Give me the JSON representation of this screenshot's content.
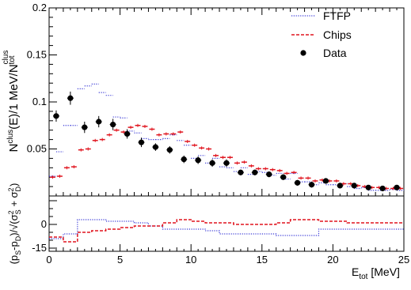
{
  "colors": {
    "ftfp": "#3b3bd6",
    "chips": "#e0141e",
    "data": "#000000"
  },
  "chart_data": [
    {
      "type": "scatter",
      "panel": "main",
      "x_edges_start": 0,
      "x_bin_width": 0.5,
      "xlim": [
        0,
        25
      ],
      "ylim": [
        0,
        0.2
      ],
      "yticks": [
        0.05,
        0.1,
        0.15,
        0.2
      ],
      "ytick_labels": [
        "0.05",
        "0.1",
        "0.15",
        "0.2"
      ],
      "ylabel": "N^{clus}(E)/1 MeV/N^{clus}_{tot}",
      "legend": {
        "position": "top-right",
        "entries": [
          {
            "key": "ftfp",
            "label": "FTFP"
          },
          {
            "key": "chips",
            "label": "Chips"
          },
          {
            "key": "data",
            "label": "Data"
          }
        ]
      },
      "series": [
        {
          "key": "ftfp",
          "style": "dotted-hist",
          "values": [
            0.021,
            0.047,
            0.075,
            0.075,
            0.114,
            0.117,
            0.119,
            0.11,
            0.107,
            0.084,
            0.083,
            0.069,
            0.067,
            0.061,
            0.06,
            0.06,
            0.061,
            0.065,
            0.059,
            0.054,
            0.04,
            0.043,
            0.035,
            0.04,
            0.031,
            0.03,
            0.026,
            0.03,
            0.023,
            0.026,
            0.025,
            0.022,
            0.024,
            0.018,
            0.024,
            0.015,
            0.015,
            0.012,
            0.014,
            0.012,
            0.012,
            0.013,
            0.01,
            0.008,
            0.009,
            0.006,
            0.006,
            0.006,
            0.007,
            0.006
          ]
        },
        {
          "key": "chips",
          "style": "dashed-marker",
          "values": [
            0.02,
            0.021,
            0.03,
            0.031,
            0.049,
            0.05,
            0.059,
            0.06,
            0.065,
            0.07,
            0.068,
            0.073,
            0.075,
            0.074,
            0.071,
            0.065,
            0.066,
            0.066,
            0.068,
            0.058,
            0.054,
            0.051,
            0.05,
            0.043,
            0.041,
            0.041,
            0.035,
            0.036,
            0.032,
            0.029,
            0.029,
            0.028,
            0.027,
            0.024,
            0.025,
            0.019,
            0.019,
            0.016,
            0.017,
            0.016,
            0.016,
            0.013,
            0.013,
            0.011,
            0.01,
            0.009,
            0.009,
            0.008,
            0.008,
            0.008
          ]
        },
        {
          "key": "data",
          "style": "points",
          "x": [
            0.5,
            1.5,
            2.5,
            3.5,
            4.5,
            5.5,
            6.5,
            7.5,
            8.5,
            9.5,
            10.5,
            11.5,
            12.5,
            13.5,
            14.5,
            15.5,
            16.5,
            17.5,
            18.5,
            19.5,
            20.5,
            21.5,
            22.5,
            23.5,
            24.5
          ],
          "y": [
            0.085,
            0.104,
            0.073,
            0.079,
            0.076,
            0.066,
            0.057,
            0.052,
            0.049,
            0.039,
            0.038,
            0.035,
            0.035,
            0.025,
            0.025,
            0.023,
            0.02,
            0.014,
            0.012,
            0.016,
            0.011,
            0.011,
            0.009,
            0.008,
            0.009
          ],
          "err": [
            0.006,
            0.007,
            0.006,
            0.006,
            0.006,
            0.005,
            0.005,
            0.004,
            0.004,
            0.004,
            0.004,
            0.004,
            0.004,
            0.003,
            0.003,
            0.003,
            0.003,
            0.003,
            0.003,
            0.003,
            0.002,
            0.002,
            0.002,
            0.002,
            0.002
          ]
        }
      ]
    },
    {
      "type": "line",
      "panel": "ratio",
      "xlim": [
        0,
        25
      ],
      "ylim": [
        -17,
        18
      ],
      "xticks": [
        0,
        5,
        10,
        15,
        20,
        25
      ],
      "xtick_labels": [
        "0",
        "5",
        "10",
        "15",
        "20",
        "25"
      ],
      "yticks": [
        -15,
        0
      ],
      "ytick_labels": [
        "-15",
        "0"
      ],
      "xlabel": "E_{tot} [MeV]",
      "ylabel": "(p_{S}-p_{D})/√(σ^{2}_{S} + σ^{2}_{D})",
      "x_edges_start": 0,
      "x_bin_width": 1,
      "series": [
        {
          "key": "ftfp",
          "style": "dotted-step",
          "values": [
            -9,
            -6,
            3,
            3,
            2,
            2,
            1,
            -1,
            -3,
            -3,
            -3,
            -4,
            -6,
            -6,
            -6,
            -6,
            -7,
            -7,
            -7,
            -3,
            -3,
            -3,
            -3,
            -3,
            -3
          ]
        },
        {
          "key": "chips",
          "style": "dashed-step",
          "values": [
            -8,
            -11,
            -5,
            -4,
            -3,
            -2,
            -1,
            -1,
            1,
            3,
            2,
            1,
            1,
            0,
            0,
            0,
            1,
            3,
            3,
            2,
            2,
            1,
            1,
            1,
            1
          ]
        }
      ]
    }
  ]
}
